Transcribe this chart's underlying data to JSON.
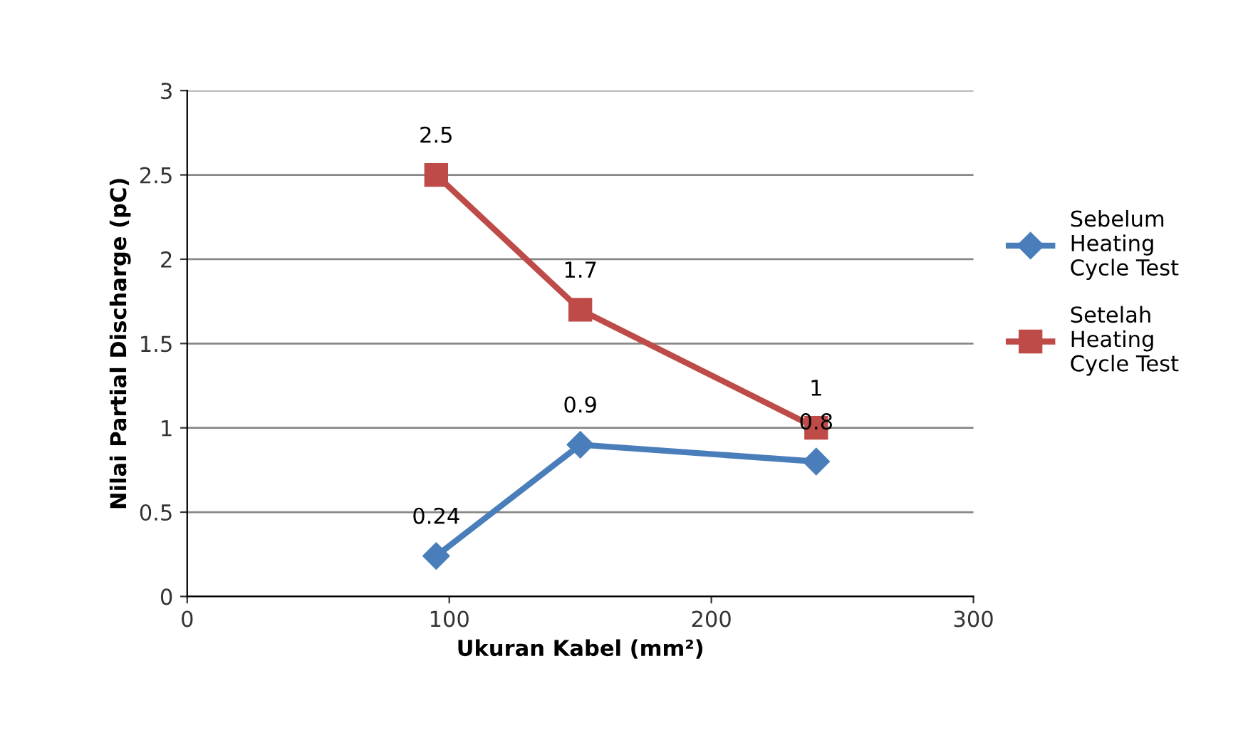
{
  "chart_data": {
    "type": "line",
    "xlabel": "Ukuran Kabel (mm²)",
    "ylabel": "Nilai Partial Discharge (pC)",
    "x": [
      95,
      150,
      240
    ],
    "series": [
      {
        "name": "Sebelum\nHeating\nCycle Test",
        "color": "#4a7ebb",
        "marker": "diamond",
        "values": [
          0.24,
          0.9,
          0.8
        ]
      },
      {
        "name": "Setelah\nHeating\nCycle Test",
        "color": "#be4b48",
        "marker": "square",
        "values": [
          2.5,
          1.7,
          1
        ]
      }
    ],
    "xlim": [
      0,
      300
    ],
    "xticks": [
      0,
      100,
      200,
      300
    ],
    "ylim": [
      0,
      3
    ],
    "yticks": [
      0,
      0.5,
      1,
      1.5,
      2,
      2.5,
      3
    ],
    "grid": "y",
    "legend": "right",
    "data_labels": true,
    "line_style": "solid"
  }
}
